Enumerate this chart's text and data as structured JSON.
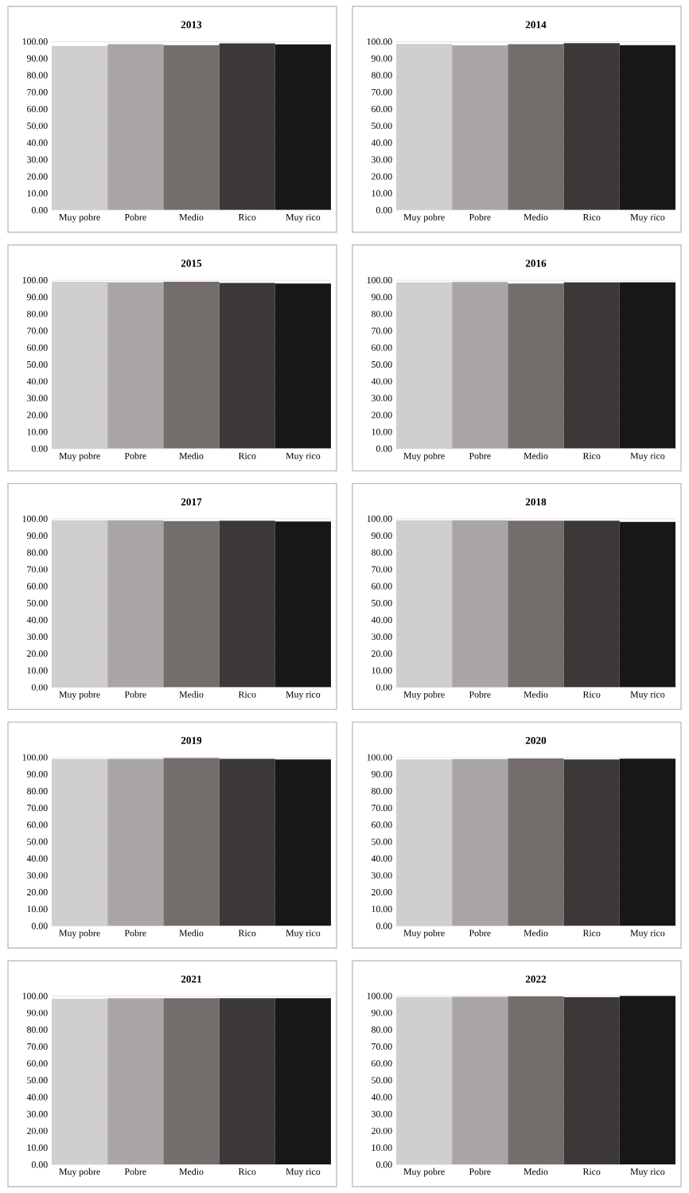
{
  "chart_data": [
    {
      "type": "bar",
      "title": "2013",
      "categories": [
        "Muy pobre",
        "Pobre",
        "Medio",
        "Rico",
        "Muy rico"
      ],
      "values": [
        97.3,
        98.3,
        97.7,
        98.8,
        98.2
      ],
      "colors": [
        "#d0cecf",
        "#aaa6a5",
        "#736d6c",
        "#3b3837",
        "#171717"
      ],
      "ylim": [
        0,
        100
      ],
      "yticks": [
        {
          "value": 0,
          "label": "0.00"
        },
        {
          "value": 10,
          "label": "10.00"
        },
        {
          "value": 20,
          "label": "20.00"
        },
        {
          "value": 30,
          "label": "30.00"
        },
        {
          "value": 40,
          "label": "40.00"
        },
        {
          "value": 50,
          "label": "50.00"
        },
        {
          "value": 60,
          "label": "60.00"
        },
        {
          "value": 70,
          "label": "70.00"
        },
        {
          "value": 80,
          "label": "80.00"
        },
        {
          "value": 90,
          "label": "90.00"
        },
        {
          "value": 100,
          "label": "100.00"
        }
      ],
      "grid": "y"
    },
    {
      "type": "bar",
      "title": "2014",
      "categories": [
        "Muy pobre",
        "Pobre",
        "Medio",
        "Rico",
        "Muy rico"
      ],
      "values": [
        98.5,
        97.6,
        98.4,
        98.9,
        97.8
      ],
      "colors": [
        "#d0cecf",
        "#aaa6a5",
        "#736d6c",
        "#3b3837",
        "#171717"
      ],
      "ylim": [
        0,
        100
      ],
      "yticks": [
        {
          "value": 0,
          "label": "0.00"
        },
        {
          "value": 10,
          "label": "10.00"
        },
        {
          "value": 20,
          "label": "20.00"
        },
        {
          "value": 30,
          "label": "30.00"
        },
        {
          "value": 40,
          "label": "40.00"
        },
        {
          "value": 50,
          "label": "50.00"
        },
        {
          "value": 60,
          "label": "60.00"
        },
        {
          "value": 70,
          "label": "70.00"
        },
        {
          "value": 80,
          "label": "80.00"
        },
        {
          "value": 90,
          "label": "90.00"
        },
        {
          "value": 100,
          "label": "100.00"
        }
      ],
      "grid": "y"
    },
    {
      "type": "bar",
      "title": "2015",
      "categories": [
        "Muy pobre",
        "Pobre",
        "Medio",
        "Rico",
        "Muy rico"
      ],
      "values": [
        99.0,
        98.6,
        99.0,
        98.3,
        97.9
      ],
      "colors": [
        "#d0cecf",
        "#aaa6a5",
        "#736d6c",
        "#3b3837",
        "#171717"
      ],
      "ylim": [
        0,
        100
      ],
      "yticks": [
        {
          "value": 0,
          "label": "0.00"
        },
        {
          "value": 10,
          "label": "10.00"
        },
        {
          "value": 20,
          "label": "20.00"
        },
        {
          "value": 30,
          "label": "30.00"
        },
        {
          "value": 40,
          "label": "40.00"
        },
        {
          "value": 50,
          "label": "50.00"
        },
        {
          "value": 60,
          "label": "60.00"
        },
        {
          "value": 70,
          "label": "70.00"
        },
        {
          "value": 80,
          "label": "80.00"
        },
        {
          "value": 90,
          "label": "90.00"
        },
        {
          "value": 100,
          "label": "100.00"
        }
      ],
      "grid": "y"
    },
    {
      "type": "bar",
      "title": "2016",
      "categories": [
        "Muy pobre",
        "Pobre",
        "Medio",
        "Rico",
        "Muy rico"
      ],
      "values": [
        98.6,
        98.8,
        97.9,
        98.6,
        98.6
      ],
      "colors": [
        "#d0cecf",
        "#aaa6a5",
        "#736d6c",
        "#3b3837",
        "#171717"
      ],
      "ylim": [
        0,
        100
      ],
      "yticks": [
        {
          "value": 0,
          "label": "0.00"
        },
        {
          "value": 10,
          "label": "10.00"
        },
        {
          "value": 20,
          "label": "20.00"
        },
        {
          "value": 30,
          "label": "30.00"
        },
        {
          "value": 40,
          "label": "40.00"
        },
        {
          "value": 50,
          "label": "50.00"
        },
        {
          "value": 60,
          "label": "60.00"
        },
        {
          "value": 70,
          "label": "70.00"
        },
        {
          "value": 80,
          "label": "80.00"
        },
        {
          "value": 90,
          "label": "90.00"
        },
        {
          "value": 100,
          "label": "100.00"
        }
      ],
      "grid": "y"
    },
    {
      "type": "bar",
      "title": "2017",
      "categories": [
        "Muy pobre",
        "Pobre",
        "Medio",
        "Rico",
        "Muy rico"
      ],
      "values": [
        99.0,
        99.0,
        98.5,
        98.8,
        98.3
      ],
      "colors": [
        "#d0cecf",
        "#aaa6a5",
        "#736d6c",
        "#3b3837",
        "#171717"
      ],
      "ylim": [
        0,
        100
      ],
      "yticks": [
        {
          "value": 0,
          "label": "0.00"
        },
        {
          "value": 10,
          "label": "10.00"
        },
        {
          "value": 20,
          "label": "20.00"
        },
        {
          "value": 30,
          "label": "30.00"
        },
        {
          "value": 40,
          "label": "40.00"
        },
        {
          "value": 50,
          "label": "50.00"
        },
        {
          "value": 60,
          "label": "60.00"
        },
        {
          "value": 70,
          "label": "70.00"
        },
        {
          "value": 80,
          "label": "80.00"
        },
        {
          "value": 90,
          "label": "90.00"
        },
        {
          "value": 100,
          "label": "100.00"
        }
      ],
      "grid": "y"
    },
    {
      "type": "bar",
      "title": "2018",
      "categories": [
        "Muy pobre",
        "Pobre",
        "Medio",
        "Rico",
        "Muy rico"
      ],
      "values": [
        99.0,
        99.0,
        98.7,
        98.8,
        98.0
      ],
      "colors": [
        "#d0cecf",
        "#aaa6a5",
        "#736d6c",
        "#3b3837",
        "#171717"
      ],
      "ylim": [
        0,
        100
      ],
      "yticks": [
        {
          "value": 0,
          "label": "0.00"
        },
        {
          "value": 10,
          "label": "10.00"
        },
        {
          "value": 20,
          "label": "20.00"
        },
        {
          "value": 30,
          "label": "30.00"
        },
        {
          "value": 40,
          "label": "40.00"
        },
        {
          "value": 50,
          "label": "50.00"
        },
        {
          "value": 60,
          "label": "60.00"
        },
        {
          "value": 70,
          "label": "70.00"
        },
        {
          "value": 80,
          "label": "80.00"
        },
        {
          "value": 90,
          "label": "90.00"
        },
        {
          "value": 100,
          "label": "100.00"
        }
      ],
      "grid": "y"
    },
    {
      "type": "bar",
      "title": "2019",
      "categories": [
        "Muy pobre",
        "Pobre",
        "Medio",
        "Rico",
        "Muy rico"
      ],
      "values": [
        99.0,
        99.0,
        99.5,
        99.0,
        98.6
      ],
      "colors": [
        "#d0cecf",
        "#aaa6a5",
        "#736d6c",
        "#3b3837",
        "#171717"
      ],
      "ylim": [
        0,
        100
      ],
      "yticks": [
        {
          "value": 0,
          "label": "0.00"
        },
        {
          "value": 10,
          "label": "10.00"
        },
        {
          "value": 20,
          "label": "20.00"
        },
        {
          "value": 30,
          "label": "30.00"
        },
        {
          "value": 40,
          "label": "40.00"
        },
        {
          "value": 50,
          "label": "50.00"
        },
        {
          "value": 60,
          "label": "60.00"
        },
        {
          "value": 70,
          "label": "70.00"
        },
        {
          "value": 80,
          "label": "80.00"
        },
        {
          "value": 90,
          "label": "90.00"
        },
        {
          "value": 100,
          "label": "100.00"
        }
      ],
      "grid": "y"
    },
    {
      "type": "bar",
      "title": "2020",
      "categories": [
        "Muy pobre",
        "Pobre",
        "Medio",
        "Rico",
        "Muy rico"
      ],
      "values": [
        98.6,
        98.9,
        99.2,
        98.7,
        99.1
      ],
      "colors": [
        "#d0cecf",
        "#aaa6a5",
        "#736d6c",
        "#3b3837",
        "#171717"
      ],
      "ylim": [
        0,
        100
      ],
      "yticks": [
        {
          "value": 0,
          "label": "0.00"
        },
        {
          "value": 10,
          "label": "10.00"
        },
        {
          "value": 20,
          "label": "20.00"
        },
        {
          "value": 30,
          "label": "30.00"
        },
        {
          "value": 40,
          "label": "40.00"
        },
        {
          "value": 50,
          "label": "50.00"
        },
        {
          "value": 60,
          "label": "60.00"
        },
        {
          "value": 70,
          "label": "70.00"
        },
        {
          "value": 80,
          "label": "80.00"
        },
        {
          "value": 90,
          "label": "90.00"
        },
        {
          "value": 100,
          "label": "100.00"
        }
      ],
      "grid": "y"
    },
    {
      "type": "bar",
      "title": "2021",
      "categories": [
        "Muy pobre",
        "Pobre",
        "Medio",
        "Rico",
        "Muy rico"
      ],
      "values": [
        98.3,
        98.6,
        98.6,
        98.6,
        98.6
      ],
      "colors": [
        "#d0cecf",
        "#aaa6a5",
        "#736d6c",
        "#3b3837",
        "#171717"
      ],
      "ylim": [
        0,
        100
      ],
      "yticks": [
        {
          "value": 0,
          "label": "0.00"
        },
        {
          "value": 10,
          "label": "10.00"
        },
        {
          "value": 20,
          "label": "20.00"
        },
        {
          "value": 30,
          "label": "30.00"
        },
        {
          "value": 40,
          "label": "40.00"
        },
        {
          "value": 50,
          "label": "50.00"
        },
        {
          "value": 60,
          "label": "60.00"
        },
        {
          "value": 70,
          "label": "70.00"
        },
        {
          "value": 80,
          "label": "80.00"
        },
        {
          "value": 90,
          "label": "90.00"
        },
        {
          "value": 100,
          "label": "100.00"
        }
      ],
      "grid": "y"
    },
    {
      "type": "bar",
      "title": "2022",
      "categories": [
        "Muy pobre",
        "Pobre",
        "Medio",
        "Rico",
        "Muy rico"
      ],
      "values": [
        99.2,
        99.4,
        99.6,
        99.2,
        100.0
      ],
      "colors": [
        "#d0cecf",
        "#aaa6a5",
        "#736d6c",
        "#3b3837",
        "#171717"
      ],
      "ylim": [
        0,
        100
      ],
      "yticks": [
        {
          "value": 0,
          "label": "0.00"
        },
        {
          "value": 10,
          "label": "10.00"
        },
        {
          "value": 20,
          "label": "20.00"
        },
        {
          "value": 30,
          "label": "30.00"
        },
        {
          "value": 40,
          "label": "40.00"
        },
        {
          "value": 50,
          "label": "50.00"
        },
        {
          "value": 60,
          "label": "60.00"
        },
        {
          "value": 70,
          "label": "70.00"
        },
        {
          "value": 80,
          "label": "80.00"
        },
        {
          "value": 90,
          "label": "90.00"
        },
        {
          "value": 100,
          "label": "100.00"
        }
      ],
      "grid": "y"
    }
  ]
}
